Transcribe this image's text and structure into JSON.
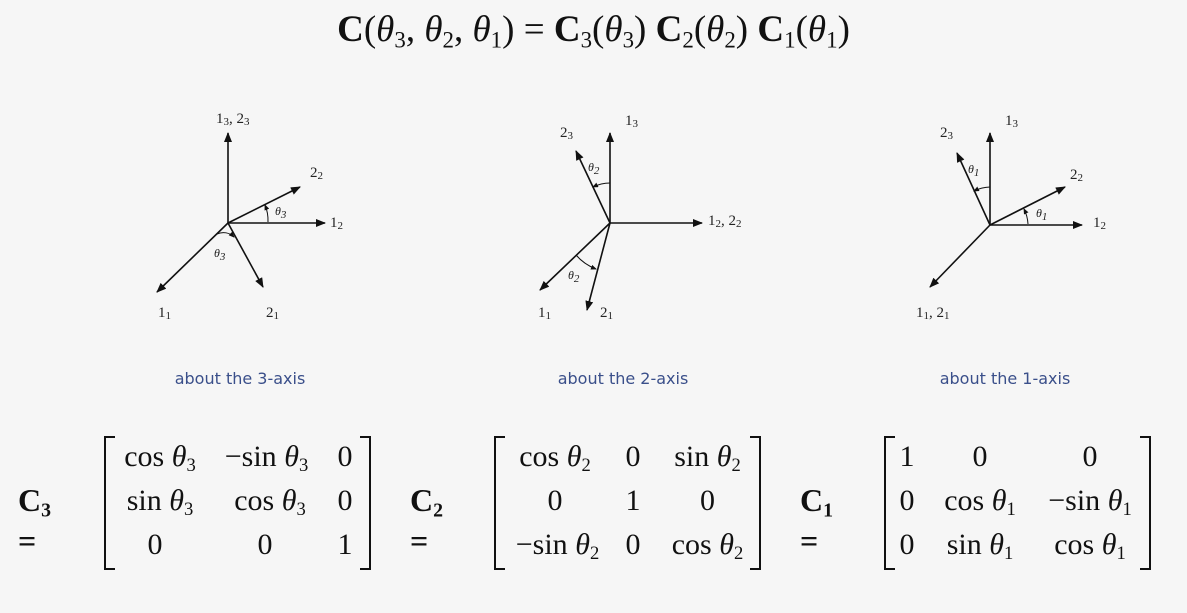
{
  "main_equation": {
    "lhs": "C(θ3, θ2, θ1) = ",
    "rhs": "C3(θ3) C2(θ2) C1(θ1)"
  },
  "diagrams": [
    {
      "caption": "about the 3-axis",
      "labels": {
        "top": "1_3, 2_3",
        "right": "1_2",
        "upper_right": "2_2",
        "lower_left": "1_1",
        "lower_right": "2_1"
      },
      "angle": "θ3"
    },
    {
      "caption": "about the 2-axis",
      "labels": {
        "top": "1_3",
        "upper_left": "2_3",
        "right": "1_2, 2_2",
        "lower_left": "1_1",
        "lower_right": "2_1"
      },
      "angle": "θ2"
    },
    {
      "caption": "about the 1-axis",
      "labels": {
        "top": "1_3",
        "upper_left": "2_3",
        "right": "1_2",
        "upper_right": "2_2",
        "lower_left": "1_1, 2_1"
      },
      "angle": "θ1"
    }
  ],
  "matrices": [
    {
      "name": "C3",
      "rows": [
        [
          "cos θ3",
          "−sin θ3",
          "0"
        ],
        [
          "sin θ3",
          "cos θ3",
          "0"
        ],
        [
          "0",
          "0",
          "1"
        ]
      ]
    },
    {
      "name": "C2",
      "rows": [
        [
          "cos θ2",
          "0",
          "sin θ2"
        ],
        [
          "0",
          "1",
          "0"
        ],
        [
          "−sin θ2",
          "0",
          "cos θ2"
        ]
      ]
    },
    {
      "name": "C1",
      "rows": [
        [
          "1",
          "0",
          "0"
        ],
        [
          "0",
          "cos θ1",
          "−sin θ1"
        ],
        [
          "0",
          "sin θ1",
          "cos θ1"
        ]
      ]
    }
  ]
}
